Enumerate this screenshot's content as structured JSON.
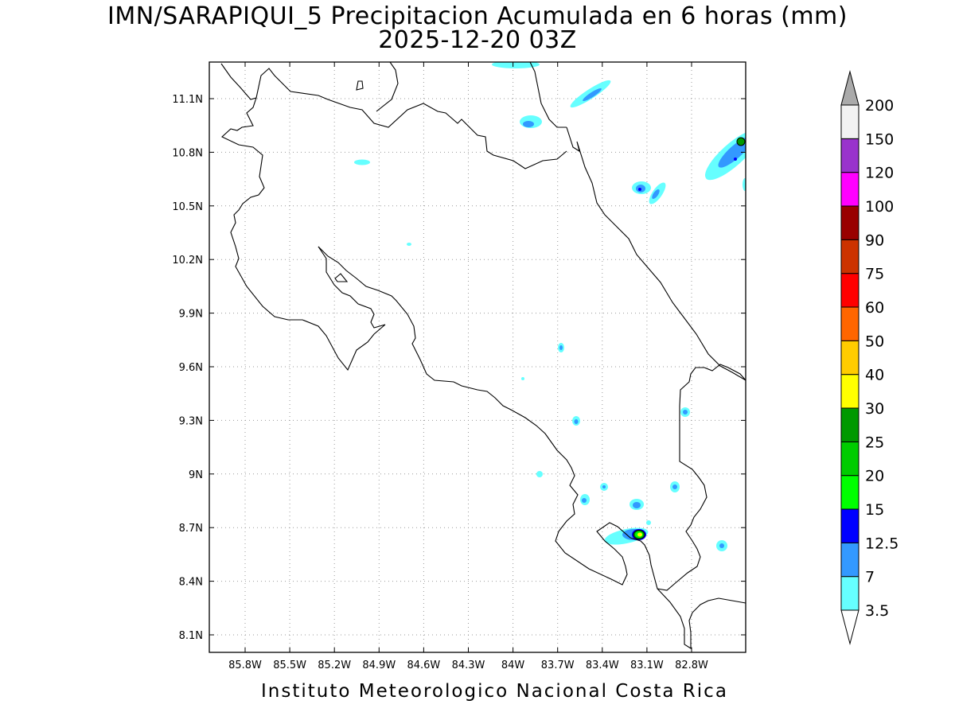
{
  "title": {
    "line1": "IMN/SARAPIQUI_5 Precipitacion Acumulada en 6 horas (mm)",
    "line2": "2025-12-20 03Z"
  },
  "footer": "Instituto Meteorologico Nacional Costa Rica",
  "map": {
    "lon_range": [
      -86.04,
      -82.55
    ],
    "lat_range": [
      8.01,
      11.31
    ],
    "lon_ticks": [
      "85.8W",
      "85.5W",
      "85.2W",
      "84.9W",
      "84.6W",
      "84.3W",
      "84W",
      "83.7W",
      "83.4W",
      "83.1W",
      "82.8W"
    ],
    "lat_ticks": [
      "11.1N",
      "10.8N",
      "10.5N",
      "10.2N",
      "9.9N",
      "9.6N",
      "9.3N",
      "9N",
      "8.7N",
      "8.4N",
      "8.1N"
    ],
    "grid": "dotted"
  },
  "colorbar": {
    "labels": [
      "3.5",
      "7",
      "12.5",
      "15",
      "20",
      "25",
      "30",
      "40",
      "50",
      "60",
      "75",
      "90",
      "100",
      "120",
      "150",
      "200"
    ],
    "colors": [
      "#ffffff",
      "#66ffff",
      "#3399ff",
      "#0000ff",
      "#00ff00",
      "#00cc00",
      "#009900",
      "#ffff00",
      "#ffcc00",
      "#ff6600",
      "#ff0000",
      "#cc3300",
      "#990000",
      "#ff00ff",
      "#9933cc",
      "#f2f2f2"
    ],
    "overflow_color": "#aaaaaa"
  }
}
